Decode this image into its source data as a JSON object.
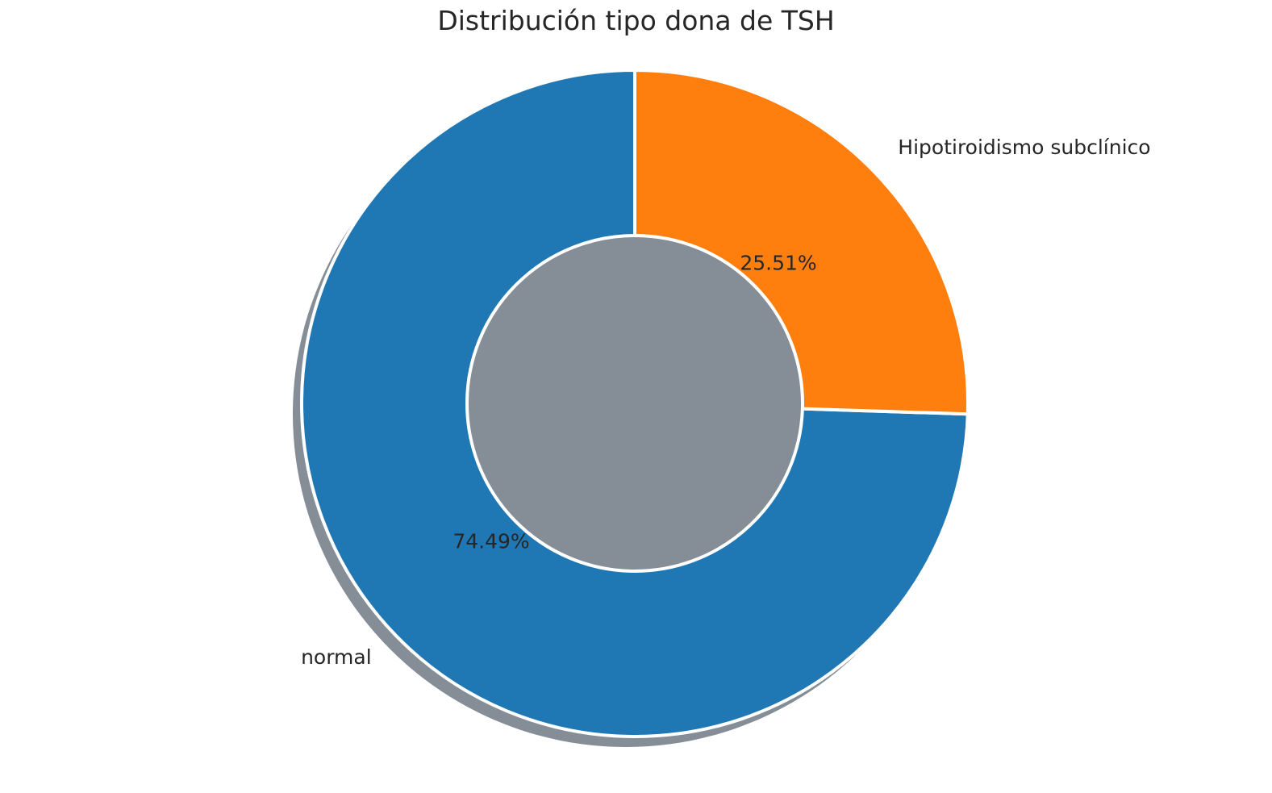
{
  "chart_data": {
    "type": "pie",
    "title": "Distribución tipo dona de TSH",
    "categories": [
      "normal",
      "Hipotiroidismo subclínico"
    ],
    "values": [
      74.49,
      25.51
    ],
    "percent_labels": [
      "74.49%",
      "25.51%"
    ],
    "colors": [
      "#1f77b4",
      "#ff7f0e"
    ],
    "donut": true,
    "shadow": true,
    "start_angle_deg": 90,
    "direction": "clockwise",
    "legend": "none"
  }
}
